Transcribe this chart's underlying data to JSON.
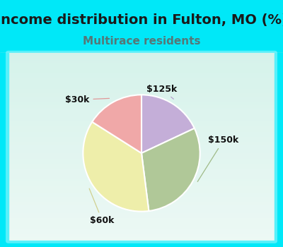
{
  "title": "Income distribution in Fulton, MO (%)",
  "subtitle": "Multirace residents",
  "title_fontsize": 14,
  "subtitle_fontsize": 11,
  "title_color": "#1a1a1a",
  "subtitle_color": "#557777",
  "background_top": "#00e8f8",
  "chart_bg_top": "#c8eee4",
  "chart_bg_bottom": "#e8f8f0",
  "slices": [
    {
      "label": "$125k",
      "value": 18,
      "color": "#c4aed8"
    },
    {
      "label": "$150k",
      "value": 30,
      "color": "#b0c898"
    },
    {
      "label": "$60k",
      "value": 36,
      "color": "#eeeeaa"
    },
    {
      "label": "$30k",
      "value": 16,
      "color": "#f0a8a8"
    }
  ],
  "label_fontsize": 9,
  "label_color": "#111111"
}
